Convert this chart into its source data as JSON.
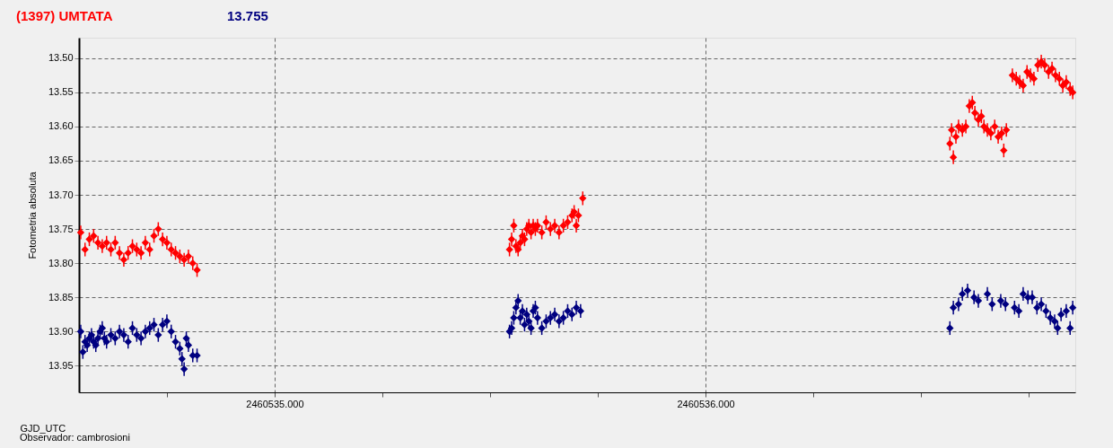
{
  "chart_data": {
    "type": "scatter",
    "title": "(1397) UMTATA",
    "subtitle": "13.755",
    "xlabel": "GJD_UTC",
    "ylabel": "Fotometria absoluta",
    "annotations": [
      "Observador: cambrosioni"
    ],
    "xlim": [
      2460534.546,
      2460536.858
    ],
    "ylim": [
      13.989,
      13.47
    ],
    "xticks": [
      {
        "value": 2460534.75,
        "label": null
      },
      {
        "value": 2460535,
        "label": "2460535.000"
      },
      {
        "value": 2460535.25,
        "label": null
      },
      {
        "value": 2460535.5,
        "label": null
      },
      {
        "value": 2460535.75,
        "label": null
      },
      {
        "value": 2460536,
        "label": "2460536.000"
      },
      {
        "value": 2460536.25,
        "label": null
      },
      {
        "value": 2460536.5,
        "label": null
      },
      {
        "value": 2460536.75,
        "label": null
      }
    ],
    "yticks": [
      {
        "value": 13.5,
        "label": "13.50"
      },
      {
        "value": 13.55,
        "label": "13.55"
      },
      {
        "value": 13.6,
        "label": "13.60"
      },
      {
        "value": 13.65,
        "label": "13.65"
      },
      {
        "value": 13.7,
        "label": "13.70"
      },
      {
        "value": 13.75,
        "label": "13.75"
      },
      {
        "value": 13.8,
        "label": "13.80"
      },
      {
        "value": 13.85,
        "label": "13.85"
      },
      {
        "value": 13.9,
        "label": "13.90"
      },
      {
        "value": 13.95,
        "label": "13.95"
      }
    ],
    "grid": true,
    "marker": "diamond",
    "series": [
      {
        "color": "#ff0000",
        "x": [
          2460534.55,
          2460534.56,
          2460534.57,
          2460534.58,
          2460534.59,
          2460534.6,
          2460534.61,
          2460534.62,
          2460534.63,
          2460534.64,
          2460534.65,
          2460534.66,
          2460534.67,
          2460534.68,
          2460534.69,
          2460534.7,
          2460534.71,
          2460534.72,
          2460534.73,
          2460534.74,
          2460534.75,
          2460534.76,
          2460534.77,
          2460534.78,
          2460534.79,
          2460534.8,
          2460534.81,
          2460534.82,
          2460535.545,
          2460535.55,
          2460535.555,
          2460535.56,
          2460535.565,
          2460535.57,
          2460535.575,
          2460535.58,
          2460535.585,
          2460535.59,
          2460535.595,
          2460535.6,
          2460535.605,
          2460535.61,
          2460535.62,
          2460535.63,
          2460535.64,
          2460535.65,
          2460535.66,
          2460535.67,
          2460535.68,
          2460535.69,
          2460535.695,
          2460535.7,
          2460535.705,
          2460535.715,
          2460536.567,
          2460536.571,
          2460536.575,
          2460536.581,
          2460536.587,
          2460536.596,
          2460536.604,
          2460536.612,
          2460536.619,
          2460536.625,
          2460536.633,
          2460536.64,
          2460536.646,
          2460536.654,
          2460536.662,
          2460536.671,
          2460536.679,
          2460536.687,
          2460536.692,
          2460536.698,
          2460536.712,
          2460536.721,
          2460536.729,
          2460536.737,
          2460536.746,
          2460536.754,
          2460536.762,
          2460536.771,
          2460536.779,
          2460536.787,
          2460536.796,
          2460536.804,
          2460536.812,
          2460536.821,
          2460536.829,
          2460536.837,
          2460536.846,
          2460536.852
        ],
        "values": [
          13.755,
          13.78,
          13.765,
          13.76,
          13.77,
          13.775,
          13.77,
          13.78,
          13.77,
          13.785,
          13.795,
          13.785,
          13.775,
          13.78,
          13.785,
          13.77,
          13.78,
          13.76,
          13.75,
          13.765,
          13.77,
          13.78,
          13.785,
          13.79,
          13.795,
          13.79,
          13.8,
          13.81,
          13.78,
          13.765,
          13.745,
          13.775,
          13.78,
          13.77,
          13.76,
          13.765,
          13.75,
          13.745,
          13.755,
          13.745,
          13.75,
          13.745,
          13.755,
          13.74,
          13.75,
          13.745,
          13.755,
          13.745,
          13.74,
          13.73,
          13.725,
          13.745,
          13.73,
          13.705,
          13.625,
          13.605,
          13.645,
          13.615,
          13.6,
          13.605,
          13.6,
          13.57,
          13.565,
          13.58,
          13.59,
          13.585,
          13.6,
          13.605,
          13.61,
          13.6,
          13.615,
          13.61,
          13.635,
          13.605,
          13.525,
          13.53,
          13.535,
          13.54,
          13.52,
          13.525,
          13.53,
          13.51,
          13.505,
          13.51,
          13.52,
          13.515,
          13.525,
          13.53,
          13.54,
          13.535,
          13.545,
          13.55
        ],
        "errors": [
          0.01,
          0.01,
          0.01,
          0.01,
          0.01,
          0.01,
          0.01,
          0.01,
          0.01,
          0.01,
          0.01,
          0.01,
          0.01,
          0.01,
          0.01,
          0.01,
          0.01,
          0.01,
          0.01,
          0.01,
          0.01,
          0.01,
          0.01,
          0.01,
          0.01,
          0.01,
          0.01,
          0.01,
          0.01,
          0.01,
          0.01,
          0.01,
          0.01,
          0.01,
          0.01,
          0.01,
          0.01,
          0.01,
          0.01,
          0.01,
          0.01,
          0.01,
          0.01,
          0.01,
          0.01,
          0.01,
          0.01,
          0.01,
          0.01,
          0.01,
          0.01,
          0.01,
          0.01,
          0.01,
          0.01,
          0.01,
          0.01,
          0.01,
          0.01,
          0.01,
          0.01,
          0.01,
          0.01,
          0.01,
          0.01,
          0.01,
          0.01,
          0.01,
          0.01,
          0.01,
          0.01,
          0.01,
          0.01,
          0.01,
          0.01,
          0.01,
          0.01,
          0.01,
          0.01,
          0.01,
          0.01,
          0.01,
          0.01,
          0.01,
          0.01,
          0.01,
          0.01,
          0.01,
          0.01,
          0.01,
          0.01,
          0.01
        ]
      },
      {
        "color": "#000080",
        "x": [
          2460534.55,
          2460534.555,
          2460534.56,
          2460534.565,
          2460534.57,
          2460534.575,
          2460534.58,
          2460534.585,
          2460534.59,
          2460534.595,
          2460534.6,
          2460534.605,
          2460534.61,
          2460534.62,
          2460534.63,
          2460534.64,
          2460534.65,
          2460534.66,
          2460534.67,
          2460534.68,
          2460534.69,
          2460534.7,
          2460534.71,
          2460534.72,
          2460534.73,
          2460534.74,
          2460534.75,
          2460534.76,
          2460534.77,
          2460534.78,
          2460534.785,
          2460534.79,
          2460534.795,
          2460534.8,
          2460534.81,
          2460534.82,
          2460535.545,
          2460535.55,
          2460535.555,
          2460535.56,
          2460535.565,
          2460535.57,
          2460535.575,
          2460535.58,
          2460535.585,
          2460535.59,
          2460535.595,
          2460535.6,
          2460535.605,
          2460535.61,
          2460535.62,
          2460535.63,
          2460535.64,
          2460535.65,
          2460535.66,
          2460535.67,
          2460535.68,
          2460535.69,
          2460535.7,
          2460535.71,
          2460536.567,
          2460536.575,
          2460536.587,
          2460536.596,
          2460536.608,
          2460536.623,
          2460536.633,
          2460536.654,
          2460536.665,
          2460536.685,
          2460536.696,
          2460536.717,
          2460536.727,
          2460536.737,
          2460536.748,
          2460536.758,
          2460536.769,
          2460536.779,
          2460536.79,
          2460536.8,
          2460536.81,
          2460536.817,
          2460536.825,
          2460536.837,
          2460536.846,
          2460536.852
        ],
        "values": [
          13.9,
          13.93,
          13.915,
          13.92,
          13.91,
          13.905,
          13.915,
          13.92,
          13.91,
          13.9,
          13.895,
          13.91,
          13.915,
          13.905,
          13.91,
          13.9,
          13.905,
          13.915,
          13.895,
          13.905,
          13.91,
          13.9,
          13.895,
          13.89,
          13.905,
          13.89,
          13.885,
          13.9,
          13.915,
          13.925,
          13.94,
          13.955,
          13.91,
          13.92,
          13.935,
          13.935,
          13.9,
          13.895,
          13.88,
          13.865,
          13.855,
          13.88,
          13.87,
          13.89,
          13.875,
          13.885,
          13.895,
          13.87,
          13.865,
          13.88,
          13.895,
          13.885,
          13.88,
          13.875,
          13.885,
          13.88,
          13.87,
          13.875,
          13.865,
          13.87,
          13.895,
          13.865,
          13.86,
          13.845,
          13.84,
          13.85,
          13.855,
          13.845,
          13.86,
          13.855,
          13.86,
          13.865,
          13.87,
          13.845,
          13.85,
          13.85,
          13.865,
          13.86,
          13.87,
          13.88,
          13.885,
          13.895,
          13.875,
          13.87,
          13.895,
          13.865
        ],
        "errors": [
          0.01,
          0.01,
          0.01,
          0.01,
          0.01,
          0.01,
          0.01,
          0.01,
          0.01,
          0.01,
          0.01,
          0.01,
          0.01,
          0.01,
          0.01,
          0.01,
          0.01,
          0.01,
          0.01,
          0.01,
          0.01,
          0.01,
          0.01,
          0.01,
          0.01,
          0.01,
          0.01,
          0.01,
          0.01,
          0.01,
          0.01,
          0.01,
          0.01,
          0.01,
          0.01,
          0.01,
          0.01,
          0.01,
          0.01,
          0.01,
          0.01,
          0.01,
          0.01,
          0.01,
          0.01,
          0.01,
          0.01,
          0.01,
          0.01,
          0.01,
          0.01,
          0.01,
          0.01,
          0.01,
          0.01,
          0.01,
          0.01,
          0.01,
          0.01,
          0.01,
          0.01,
          0.01,
          0.01,
          0.01,
          0.01,
          0.01,
          0.01,
          0.01,
          0.01,
          0.01,
          0.01,
          0.01,
          0.01,
          0.01,
          0.01,
          0.01,
          0.01,
          0.01,
          0.01,
          0.01,
          0.01,
          0.01,
          0.01,
          0.01,
          0.01,
          0.01
        ]
      }
    ]
  }
}
